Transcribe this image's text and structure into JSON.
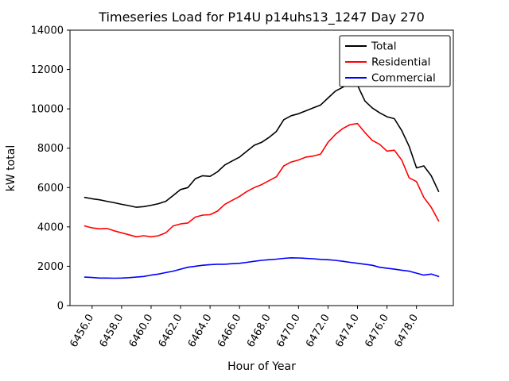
{
  "chart_data": {
    "type": "line",
    "title": "Timeseries Load for P14U p14uhs13_1247  Day 270",
    "xlabel": "Hour of Year",
    "ylabel": "kW total",
    "xlim": [
      6454.5,
      6480.5
    ],
    "ylim": [
      0,
      14000
    ],
    "grid": false,
    "legend_position": "upper right",
    "xticks": [
      6456,
      6458,
      6460,
      6462,
      6464,
      6466,
      6468,
      6470,
      6472,
      6474,
      6476,
      6478
    ],
    "xtick_labels": [
      "6456.0",
      "6458.0",
      "6460.0",
      "6462.0",
      "6464.0",
      "6466.0",
      "6468.0",
      "6470.0",
      "6472.0",
      "6474.0",
      "6476.0",
      "6478.0"
    ],
    "yticks": [
      0,
      2000,
      4000,
      6000,
      8000,
      10000,
      12000,
      14000
    ],
    "ytick_labels": [
      "0",
      "2000",
      "4000",
      "6000",
      "8000",
      "10000",
      "12000",
      "14000"
    ],
    "x": [
      6455.5,
      6456.0,
      6456.5,
      6457.0,
      6457.5,
      6458.0,
      6458.5,
      6459.0,
      6459.5,
      6460.0,
      6460.5,
      6461.0,
      6461.5,
      6462.0,
      6462.5,
      6463.0,
      6463.5,
      6464.0,
      6464.5,
      6465.0,
      6465.5,
      6466.0,
      6466.5,
      6467.0,
      6467.5,
      6468.0,
      6468.5,
      6469.0,
      6469.5,
      6470.0,
      6470.5,
      6471.0,
      6471.5,
      6472.0,
      6472.5,
      6473.0,
      6473.5,
      6474.0,
      6474.5,
      6475.0,
      6475.5,
      6476.0,
      6476.5,
      6477.0,
      6477.5,
      6478.0,
      6478.5,
      6479.0,
      6479.5
    ],
    "series": [
      {
        "name": "Total",
        "color": "#000000",
        "values": [
          5500,
          5430,
          5380,
          5300,
          5230,
          5150,
          5080,
          5000,
          5030,
          5100,
          5180,
          5300,
          5600,
          5900,
          6000,
          6450,
          6600,
          6570,
          6800,
          7150,
          7350,
          7550,
          7850,
          8150,
          8300,
          8550,
          8850,
          9450,
          9650,
          9750,
          9900,
          10050,
          10200,
          10550,
          10900,
          11100,
          11350,
          11200,
          10400,
          10050,
          9800,
          9600,
          9500,
          8900,
          8100,
          7000,
          7100,
          6600,
          5800
        ]
      },
      {
        "name": "Residential",
        "color": "#ff0000",
        "values": [
          4050,
          3950,
          3900,
          3920,
          3800,
          3700,
          3600,
          3500,
          3550,
          3500,
          3550,
          3700,
          4050,
          4150,
          4200,
          4500,
          4600,
          4620,
          4800,
          5150,
          5350,
          5550,
          5800,
          6000,
          6150,
          6350,
          6550,
          7100,
          7300,
          7400,
          7550,
          7600,
          7700,
          8300,
          8700,
          9000,
          9200,
          9250,
          8800,
          8400,
          8200,
          7850,
          7900,
          7400,
          6500,
          6300,
          5500,
          5000,
          4300
        ]
      },
      {
        "name": "Commercial",
        "color": "#0000ff",
        "values": [
          1450,
          1430,
          1400,
          1400,
          1390,
          1400,
          1420,
          1450,
          1480,
          1550,
          1600,
          1680,
          1750,
          1850,
          1950,
          2000,
          2050,
          2080,
          2100,
          2100,
          2130,
          2150,
          2200,
          2250,
          2300,
          2330,
          2360,
          2400,
          2430,
          2420,
          2400,
          2380,
          2350,
          2330,
          2300,
          2250,
          2200,
          2150,
          2100,
          2050,
          1950,
          1900,
          1850,
          1800,
          1750,
          1650,
          1550,
          1600,
          1480
        ]
      }
    ]
  }
}
